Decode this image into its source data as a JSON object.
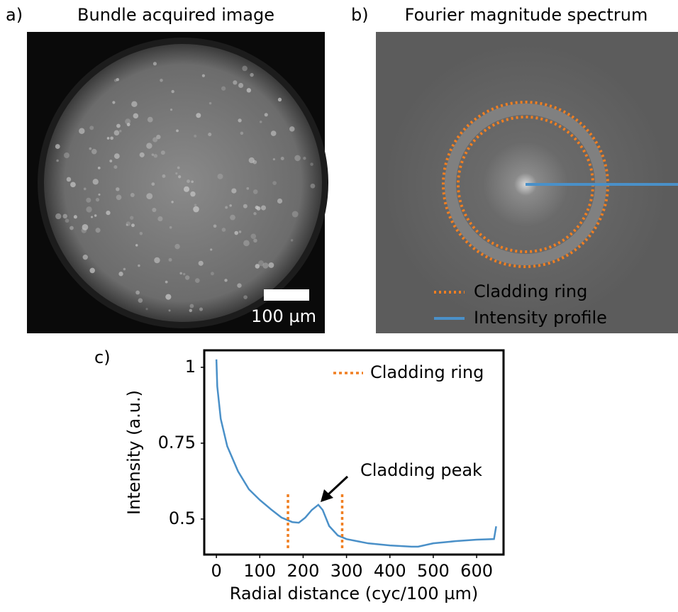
{
  "panels": [
    {
      "label": "a)",
      "title": "Bundle acquired image",
      "scale_bar": "100 µm"
    },
    {
      "label": "b)",
      "title": "Fourier magnitude spectrum",
      "legend": [
        {
          "name": "Cladding ring",
          "color": "#f07f22"
        },
        {
          "name": "Intensity profile",
          "color": "#4a90c8"
        }
      ]
    }
  ],
  "chart_data": {
    "type": "line",
    "panel_label": "c)",
    "x_label": "Radial distance (cyc/100 µm)",
    "y_label": "Intensity (a.u.)",
    "x": [
      0,
      2,
      10,
      25,
      50,
      75,
      100,
      125,
      150,
      175,
      190,
      205,
      220,
      235,
      245,
      260,
      280,
      300,
      350,
      400,
      450,
      465,
      500,
      550,
      600,
      640,
      645
    ],
    "series": [
      {
        "color": "#4a90c8",
        "values": [
          1.026,
          0.937,
          0.83,
          0.74,
          0.657,
          0.598,
          0.563,
          0.533,
          0.505,
          0.49,
          0.488,
          0.505,
          0.53,
          0.547,
          0.53,
          0.477,
          0.446,
          0.434,
          0.42,
          0.413,
          0.409,
          0.409,
          0.42,
          0.427,
          0.432,
          0.434,
          0.476
        ]
      }
    ],
    "vlines": {
      "name": "Cladding ring",
      "color": "#f07f22",
      "values": [
        165,
        290
      ]
    },
    "annotations": [
      {
        "text": "Cladding peak"
      }
    ],
    "xlim": [
      -28,
      662
    ],
    "ylim": [
      0.383,
      1.056
    ],
    "xticks": [
      0,
      100,
      200,
      300,
      400,
      500,
      600
    ],
    "yticks": [
      0.5,
      0.75,
      1
    ],
    "legend": "upper right"
  }
}
